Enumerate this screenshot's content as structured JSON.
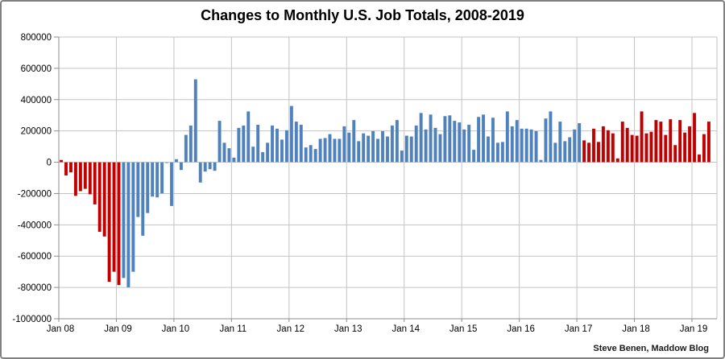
{
  "chart_data": {
    "type": "bar",
    "title": "Changes to Monthly U.S. Job Totals, 2008-2019",
    "source": "Steve Benen, Maddow Blog",
    "ylabel": "",
    "xlabel": "",
    "ylim": [
      -1000000,
      800000
    ],
    "ytick_step": 200000,
    "yticks": [
      800000,
      600000,
      400000,
      200000,
      0,
      -200000,
      -400000,
      -600000,
      -800000,
      -1000000
    ],
    "xticks": [
      "Jan 08",
      "Jan 09",
      "Jan 10",
      "Jan 11",
      "Jan 12",
      "Jan 13",
      "Jan 14",
      "Jan 15",
      "Jan 16",
      "Jan 17",
      "Jan 18",
      "Jan 19"
    ],
    "grid": true,
    "legend": "none",
    "era_colors": {
      "R": "#c00000",
      "B": "#4f81bd"
    },
    "era_meaning": {
      "R": "republican-president-month",
      "B": "democratic-president-month"
    },
    "points": [
      [
        "Jan 08",
        15000,
        "R"
      ],
      [
        "Feb 08",
        -85000,
        "R"
      ],
      [
        "Mar 08",
        -65000,
        "R"
      ],
      [
        "Apr 08",
        -215000,
        "R"
      ],
      [
        "May 08",
        -185000,
        "R"
      ],
      [
        "Jun 08",
        -170000,
        "R"
      ],
      [
        "Jul 08",
        -205000,
        "R"
      ],
      [
        "Aug 08",
        -270000,
        "R"
      ],
      [
        "Sep 08",
        -445000,
        "R"
      ],
      [
        "Oct 08",
        -475000,
        "R"
      ],
      [
        "Nov 08",
        -765000,
        "R"
      ],
      [
        "Dec 08",
        -700000,
        "R"
      ],
      [
        "Jan 09",
        -785000,
        "R"
      ],
      [
        "Feb 09",
        -740000,
        "B"
      ],
      [
        "Mar 09",
        -800000,
        "B"
      ],
      [
        "Apr 09",
        -700000,
        "B"
      ],
      [
        "May 09",
        -350000,
        "B"
      ],
      [
        "Jun 09",
        -470000,
        "B"
      ],
      [
        "Jul 09",
        -325000,
        "B"
      ],
      [
        "Aug 09",
        -220000,
        "B"
      ],
      [
        "Sep 09",
        -225000,
        "B"
      ],
      [
        "Oct 09",
        -200000,
        "B"
      ],
      [
        "Nov 09",
        -5000,
        "B"
      ],
      [
        "Dec 09",
        -280000,
        "B"
      ],
      [
        "Jan 10",
        20000,
        "B"
      ],
      [
        "Feb 10",
        -50000,
        "B"
      ],
      [
        "Mar 10",
        175000,
        "B"
      ],
      [
        "Apr 10",
        235000,
        "B"
      ],
      [
        "May 10",
        530000,
        "B"
      ],
      [
        "Jun 10",
        -130000,
        "B"
      ],
      [
        "Jul 10",
        -60000,
        "B"
      ],
      [
        "Aug 10",
        -45000,
        "B"
      ],
      [
        "Sep 10",
        -55000,
        "B"
      ],
      [
        "Oct 10",
        265000,
        "B"
      ],
      [
        "Nov 10",
        125000,
        "B"
      ],
      [
        "Dec 10",
        90000,
        "B"
      ],
      [
        "Jan 11",
        30000,
        "B"
      ],
      [
        "Feb 11",
        220000,
        "B"
      ],
      [
        "Mar 11",
        235000,
        "B"
      ],
      [
        "Apr 11",
        325000,
        "B"
      ],
      [
        "May 11",
        100000,
        "B"
      ],
      [
        "Jun 11",
        240000,
        "B"
      ],
      [
        "Jul 11",
        65000,
        "B"
      ],
      [
        "Aug 11",
        125000,
        "B"
      ],
      [
        "Sep 11",
        235000,
        "B"
      ],
      [
        "Oct 11",
        215000,
        "B"
      ],
      [
        "Nov 11",
        145000,
        "B"
      ],
      [
        "Dec 11",
        205000,
        "B"
      ],
      [
        "Jan 12",
        360000,
        "B"
      ],
      [
        "Feb 12",
        260000,
        "B"
      ],
      [
        "Mar 12",
        240000,
        "B"
      ],
      [
        "Apr 12",
        95000,
        "B"
      ],
      [
        "May 12",
        110000,
        "B"
      ],
      [
        "Jun 12",
        85000,
        "B"
      ],
      [
        "Jul 12",
        150000,
        "B"
      ],
      [
        "Aug 12",
        155000,
        "B"
      ],
      [
        "Sep 12",
        180000,
        "B"
      ],
      [
        "Oct 12",
        150000,
        "B"
      ],
      [
        "Nov 12",
        150000,
        "B"
      ],
      [
        "Dec 12",
        230000,
        "B"
      ],
      [
        "Jan 13",
        190000,
        "B"
      ],
      [
        "Feb 13",
        270000,
        "B"
      ],
      [
        "Mar 13",
        135000,
        "B"
      ],
      [
        "Apr 13",
        185000,
        "B"
      ],
      [
        "May 13",
        170000,
        "B"
      ],
      [
        "Jun 13",
        200000,
        "B"
      ],
      [
        "Jul 13",
        150000,
        "B"
      ],
      [
        "Aug 13",
        200000,
        "B"
      ],
      [
        "Sep 13",
        165000,
        "B"
      ],
      [
        "Oct 13",
        235000,
        "B"
      ],
      [
        "Nov 13",
        270000,
        "B"
      ],
      [
        "Dec 13",
        75000,
        "B"
      ],
      [
        "Jan 14",
        170000,
        "B"
      ],
      [
        "Feb 14",
        165000,
        "B"
      ],
      [
        "Mar 14",
        235000,
        "B"
      ],
      [
        "Apr 14",
        315000,
        "B"
      ],
      [
        "May 14",
        210000,
        "B"
      ],
      [
        "Jun 14",
        305000,
        "B"
      ],
      [
        "Jul 14",
        220000,
        "B"
      ],
      [
        "Aug 14",
        180000,
        "B"
      ],
      [
        "Sep 14",
        295000,
        "B"
      ],
      [
        "Oct 14",
        300000,
        "B"
      ],
      [
        "Nov 14",
        265000,
        "B"
      ],
      [
        "Dec 14",
        255000,
        "B"
      ],
      [
        "Jan 15",
        210000,
        "B"
      ],
      [
        "Feb 15",
        240000,
        "B"
      ],
      [
        "Mar 15",
        80000,
        "B"
      ],
      [
        "Apr 15",
        290000,
        "B"
      ],
      [
        "May 15",
        305000,
        "B"
      ],
      [
        "Jun 15",
        165000,
        "B"
      ],
      [
        "Jul 15",
        285000,
        "B"
      ],
      [
        "Aug 15",
        125000,
        "B"
      ],
      [
        "Sep 15",
        130000,
        "B"
      ],
      [
        "Oct 15",
        325000,
        "B"
      ],
      [
        "Nov 15",
        230000,
        "B"
      ],
      [
        "Dec 15",
        270000,
        "B"
      ],
      [
        "Jan 16",
        215000,
        "B"
      ],
      [
        "Feb 16",
        215000,
        "B"
      ],
      [
        "Mar 16",
        210000,
        "B"
      ],
      [
        "Apr 16",
        200000,
        "B"
      ],
      [
        "May 16",
        15000,
        "B"
      ],
      [
        "Jun 16",
        280000,
        "B"
      ],
      [
        "Jul 16",
        325000,
        "B"
      ],
      [
        "Aug 16",
        125000,
        "B"
      ],
      [
        "Sep 16",
        260000,
        "B"
      ],
      [
        "Oct 16",
        135000,
        "B"
      ],
      [
        "Nov 16",
        160000,
        "B"
      ],
      [
        "Dec 16",
        210000,
        "B"
      ],
      [
        "Jan 17",
        250000,
        "B"
      ],
      [
        "Feb 17",
        140000,
        "R"
      ],
      [
        "Mar 17",
        125000,
        "R"
      ],
      [
        "Apr 17",
        215000,
        "R"
      ],
      [
        "May 17",
        130000,
        "R"
      ],
      [
        "Jun 17",
        230000,
        "R"
      ],
      [
        "Jul 17",
        205000,
        "R"
      ],
      [
        "Aug 17",
        185000,
        "R"
      ],
      [
        "Sep 17",
        25000,
        "R"
      ],
      [
        "Oct 17",
        260000,
        "R"
      ],
      [
        "Nov 17",
        220000,
        "R"
      ],
      [
        "Dec 17",
        175000,
        "R"
      ],
      [
        "Jan 18",
        170000,
        "R"
      ],
      [
        "Feb 18",
        325000,
        "R"
      ],
      [
        "Mar 18",
        185000,
        "R"
      ],
      [
        "Apr 18",
        195000,
        "R"
      ],
      [
        "May 18",
        270000,
        "R"
      ],
      [
        "Jun 18",
        260000,
        "R"
      ],
      [
        "Jul 18",
        175000,
        "R"
      ],
      [
        "Aug 18",
        275000,
        "R"
      ],
      [
        "Sep 18",
        110000,
        "R"
      ],
      [
        "Oct 18",
        270000,
        "R"
      ],
      [
        "Nov 18",
        190000,
        "R"
      ],
      [
        "Dec 18",
        230000,
        "R"
      ],
      [
        "Jan 19",
        315000,
        "R"
      ],
      [
        "Feb 19",
        50000,
        "R"
      ],
      [
        "Mar 19",
        180000,
        "R"
      ],
      [
        "Apr 19",
        260000,
        "R"
      ]
    ]
  },
  "colors": {
    "background": "#ffffff",
    "gridline": "#c3c3c3",
    "axis_line": "#8c8c8c",
    "frame_border": "#808080",
    "label_text": "#000000"
  }
}
